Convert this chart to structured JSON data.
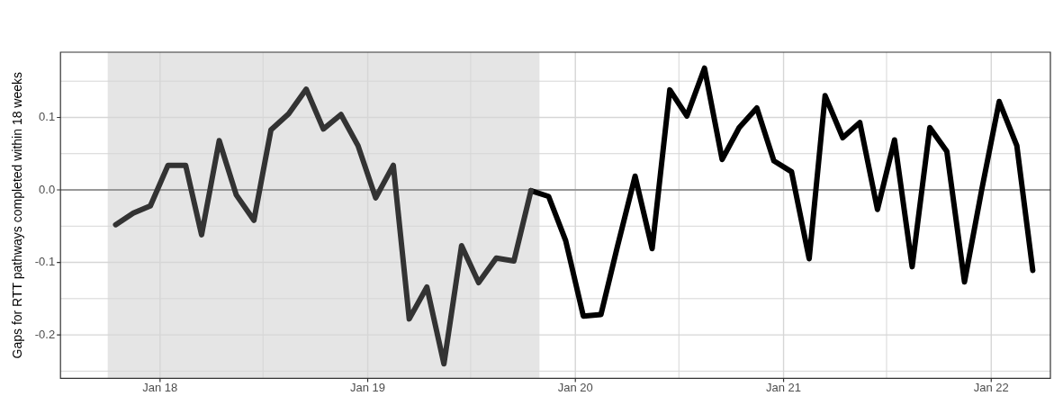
{
  "chart_data": {
    "type": "line",
    "ylabel": "Gaps for RTT pathways completed within 18 weeks",
    "xlim": [
      "2017-07-10",
      "2022-04-15"
    ],
    "xticks": [
      {
        "value": "2018-01-01",
        "label": "Jan 18"
      },
      {
        "value": "2018-07-01",
        "label": null
      },
      {
        "value": "2019-01-01",
        "label": "Jan 19"
      },
      {
        "value": "2019-07-01",
        "label": null
      },
      {
        "value": "2020-01-01",
        "label": "Jan 20"
      },
      {
        "value": "2020-07-01",
        "label": null
      },
      {
        "value": "2021-01-01",
        "label": "Jan 21"
      },
      {
        "value": "2021-07-01",
        "label": null
      },
      {
        "value": "2022-01-01",
        "label": "Jan 22"
      }
    ],
    "ylim": [
      -0.26,
      0.19
    ],
    "yticks": [
      {
        "value": -0.25,
        "label": null
      },
      -0.2,
      {
        "value": -0.15,
        "label": null
      },
      -0.1,
      {
        "value": -0.05,
        "label": null
      },
      {
        "value": 0,
        "label": "0.0"
      },
      {
        "value": 0.05,
        "label": null
      },
      0.1,
      {
        "value": 0.15,
        "label": null
      }
    ],
    "grid": true,
    "legend": false,
    "marker": "none",
    "line_style": "solid",
    "bands": [
      {
        "axis": "x",
        "from": "2017-10-01",
        "to": "2019-10-30",
        "color": "#e5e5e5"
      }
    ],
    "ref_lines": [
      {
        "axis": "y",
        "value": 0,
        "color": "#808080"
      }
    ],
    "series": [
      {
        "color": "#333333",
        "x": [
          "2017-10-15",
          "2017-11-15",
          "2017-12-15",
          "2018-01-15",
          "2018-02-15",
          "2018-03-15",
          "2018-04-15",
          "2018-05-15",
          "2018-06-15",
          "2018-07-15",
          "2018-08-15",
          "2018-09-15",
          "2018-10-15",
          "2018-11-15",
          "2018-12-15",
          "2019-01-15",
          "2019-02-15",
          "2019-03-15",
          "2019-04-15",
          "2019-05-15",
          "2019-06-15",
          "2019-07-15",
          "2019-08-15",
          "2019-09-15",
          "2019-10-15"
        ],
        "values": [
          -0.048,
          -0.032,
          -0.022,
          0.034,
          0.034,
          -0.062,
          0.068,
          -0.007,
          -0.042,
          0.083,
          0.105,
          0.139,
          0.084,
          0.104,
          0.061,
          -0.011,
          0.034,
          -0.178,
          -0.134,
          -0.24,
          -0.077,
          -0.128,
          -0.094,
          -0.098,
          -0.001
        ]
      },
      {
        "color": "#000000",
        "x": [
          "2019-10-15",
          "2019-11-15",
          "2019-12-15",
          "2020-01-15",
          "2020-02-15",
          "2020-03-15",
          "2020-04-15",
          "2020-05-15",
          "2020-06-15",
          "2020-07-15",
          "2020-08-15",
          "2020-09-15",
          "2020-10-15",
          "2020-11-15",
          "2020-12-15",
          "2021-01-15",
          "2021-02-15",
          "2021-03-15",
          "2021-04-15",
          "2021-05-15",
          "2021-06-15",
          "2021-07-15",
          "2021-08-15",
          "2021-09-15",
          "2021-10-15",
          "2021-11-15",
          "2021-12-15",
          "2022-01-15",
          "2022-02-15",
          "2022-03-15"
        ],
        "values": [
          -0.001,
          -0.009,
          -0.07,
          -0.174,
          -0.172,
          -0.078,
          0.019,
          -0.081,
          0.138,
          0.102,
          0.168,
          0.042,
          0.086,
          0.113,
          0.04,
          0.025,
          -0.095,
          0.13,
          0.072,
          0.093,
          -0.027,
          0.069,
          -0.106,
          0.086,
          0.053,
          -0.127,
          -0.001,
          0.122,
          0.061,
          -0.111
        ]
      }
    ]
  }
}
